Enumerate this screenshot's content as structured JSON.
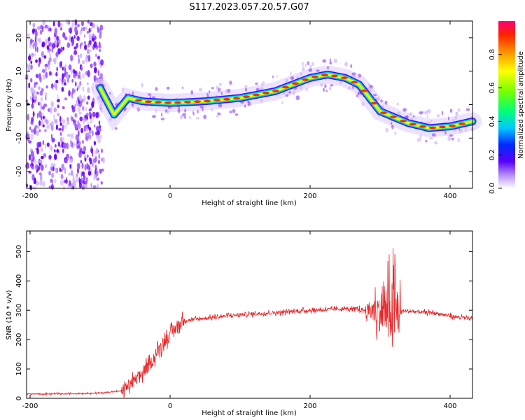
{
  "title": "S117.2023.057.20.57.G07",
  "chart_data": [
    {
      "type": "heatmap",
      "xlabel": "Height of straight line (km)",
      "ylabel": "Frequency (Hz)",
      "xlim": [
        -205,
        432
      ],
      "ylim": [
        -25,
        25
      ],
      "xticks": [
        -200,
        0,
        200,
        400
      ],
      "yticks": [
        -20,
        -10,
        0,
        10,
        20
      ],
      "colorbar": {
        "label": "Normalized spectral amplitude",
        "range": [
          0.0,
          1.0
        ],
        "ticks": [
          0.0,
          0.2,
          0.4,
          0.6,
          0.8
        ]
      },
      "dominant_frequency_ridge": {
        "x_km": [
          -100,
          -80,
          -60,
          -40,
          0,
          50,
          100,
          150,
          200,
          225,
          250,
          270,
          300,
          340,
          370,
          400,
          432
        ],
        "freq_hz": [
          5,
          -3,
          2,
          1,
          0.5,
          1,
          2,
          4,
          8,
          9,
          8,
          6,
          -2,
          -5.5,
          -7,
          -6.5,
          -5
        ]
      },
      "noise_region_x_km": [
        -205,
        -95
      ]
    },
    {
      "type": "line",
      "xlabel": "Height of straight line (km)",
      "ylabel": "SNR (10 * v/v)",
      "xlim": [
        -205,
        432
      ],
      "ylim": [
        0,
        570
      ],
      "xticks": [
        -200,
        0,
        200,
        400
      ],
      "yticks": [
        0,
        100,
        200,
        300,
        400,
        500
      ],
      "series": [
        {
          "color": "#e8282a",
          "x": [
            -205,
            -150,
            -100,
            -70,
            -50,
            -30,
            -10,
            0,
            10,
            20,
            40,
            60,
            100,
            150,
            200,
            250,
            280,
            300,
            315,
            320,
            330,
            350,
            380,
            400,
            432
          ],
          "y": [
            15,
            15,
            18,
            25,
            60,
            110,
            190,
            215,
            245,
            265,
            270,
            275,
            285,
            292,
            300,
            305,
            300,
            295,
            300,
            300,
            298,
            295,
            290,
            280,
            270
          ]
        }
      ]
    }
  ]
}
